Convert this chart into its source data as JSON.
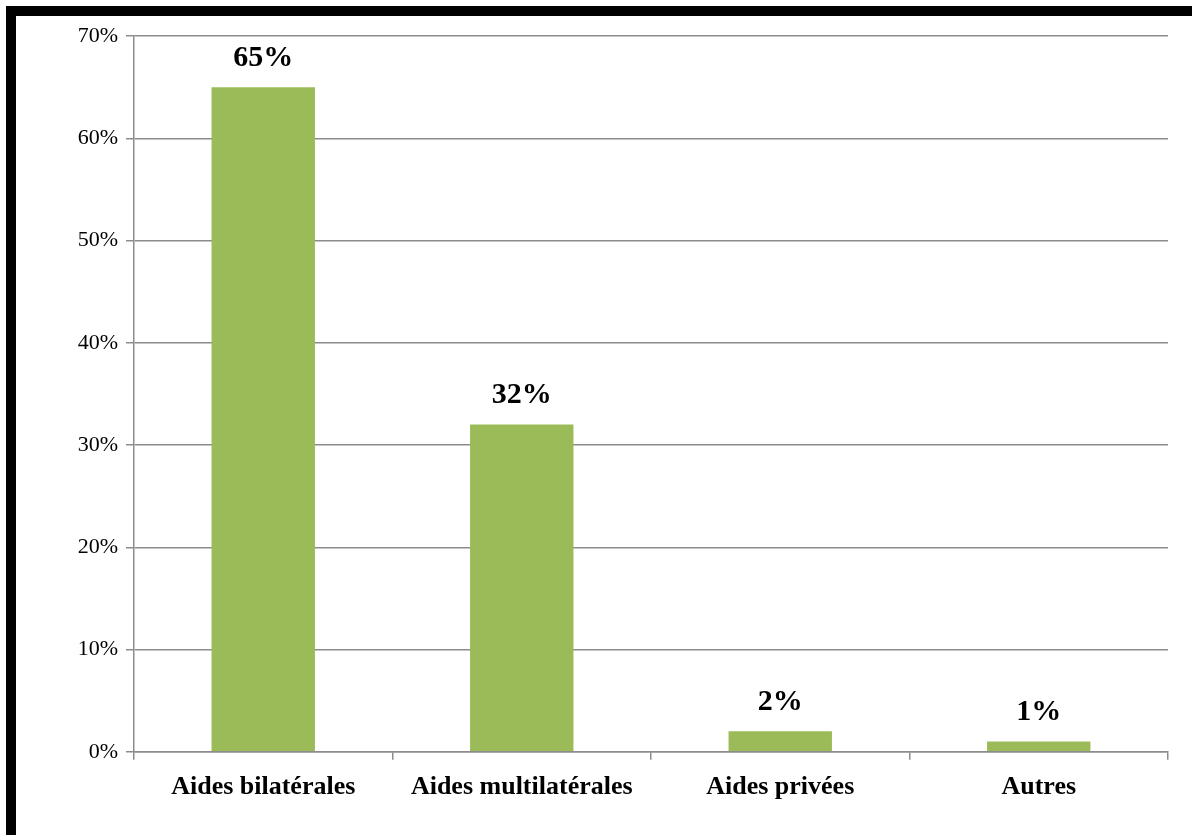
{
  "chart_data": {
    "type": "bar",
    "categories": [
      "Aides bilatérales",
      "Aides multilatérales",
      "Aides privées",
      "Autres"
    ],
    "values": [
      65,
      32,
      2,
      1
    ],
    "value_labels": [
      "65%",
      "32%",
      "2%",
      "1%"
    ],
    "color": "#9bbb59",
    "ylim": [
      0,
      70
    ],
    "yticks": [
      {
        "value": 0,
        "label": "0%"
      },
      {
        "value": 10,
        "label": "10%"
      },
      {
        "value": 20,
        "label": "20%"
      },
      {
        "value": 30,
        "label": "30%"
      },
      {
        "value": 40,
        "label": "40%"
      },
      {
        "value": 50,
        "label": "50%"
      },
      {
        "value": 60,
        "label": "60%"
      },
      {
        "value": 70,
        "label": "70%"
      }
    ],
    "grid": "y",
    "legend": false
  }
}
